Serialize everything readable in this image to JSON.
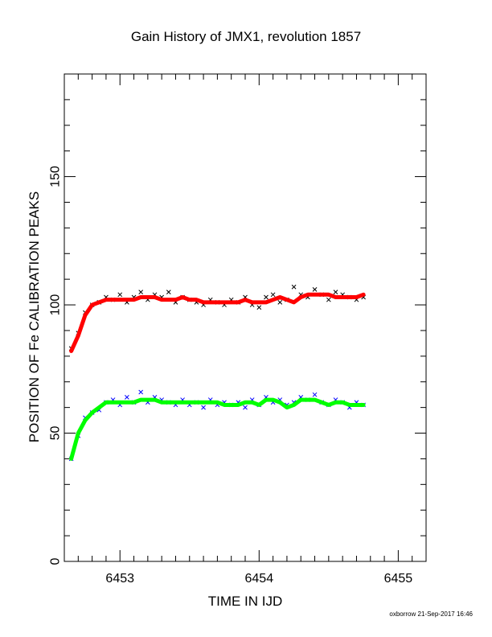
{
  "chart_data": {
    "type": "scatter",
    "title": "Gain History of JMX1, revolution 1857",
    "xlabel": "TIME IN IJD",
    "ylabel": "POSITION OF Fe CALIBRATION PEAKS",
    "xlim": [
      6452.6,
      6455.2
    ],
    "ylim": [
      0,
      190
    ],
    "xticks": [
      6453,
      6454,
      6455
    ],
    "yticks": [
      0,
      50,
      100,
      150
    ],
    "grid": false,
    "colors": {
      "upper_points": "#000000",
      "upper_fit": "#ff0000",
      "lower_points": "#0000ff",
      "lower_fit": "#00ff00"
    },
    "series": [
      {
        "role": "upper_points",
        "x": [
          6452.65,
          6452.7,
          6452.75,
          6452.8,
          6452.85,
          6452.9,
          6452.95,
          6453.0,
          6453.05,
          6453.1,
          6453.15,
          6453.2,
          6453.25,
          6453.3,
          6453.35,
          6453.4,
          6453.45,
          6453.5,
          6453.55,
          6453.6,
          6453.65,
          6453.7,
          6453.75,
          6453.8,
          6453.85,
          6453.9,
          6453.95,
          6454.0,
          6454.05,
          6454.1,
          6454.15,
          6454.2,
          6454.25,
          6454.3,
          6454.35,
          6454.4,
          6454.45,
          6454.5,
          6454.55,
          6454.6,
          6454.65,
          6454.7,
          6454.75
        ],
        "y": [
          83,
          89,
          97,
          100,
          101,
          103,
          102,
          104,
          101,
          103,
          105,
          102,
          104,
          103,
          105,
          101,
          103,
          102,
          101,
          100,
          102,
          101,
          100,
          102,
          101,
          103,
          100,
          99,
          103,
          104,
          101,
          102,
          107,
          104,
          103,
          106,
          104,
          102,
          105,
          104,
          103,
          102,
          103
        ]
      },
      {
        "role": "upper_fit",
        "x": [
          6452.65,
          6452.7,
          6452.75,
          6452.8,
          6452.85,
          6452.9,
          6452.95,
          6453.0,
          6453.05,
          6453.1,
          6453.15,
          6453.2,
          6453.25,
          6453.3,
          6453.35,
          6453.4,
          6453.45,
          6453.5,
          6453.55,
          6453.6,
          6453.65,
          6453.7,
          6453.75,
          6453.8,
          6453.85,
          6453.9,
          6453.95,
          6454.0,
          6454.05,
          6454.1,
          6454.15,
          6454.2,
          6454.25,
          6454.3,
          6454.35,
          6454.4,
          6454.45,
          6454.5,
          6454.55,
          6454.6,
          6454.65,
          6454.7,
          6454.75
        ],
        "y": [
          82,
          88,
          96,
          100,
          101,
          102,
          102,
          102,
          102,
          102,
          103,
          103,
          103,
          102,
          102,
          102,
          103,
          102,
          102,
          101,
          101,
          101,
          101,
          101,
          101,
          102,
          101,
          101,
          101,
          102,
          103,
          102,
          101,
          103,
          104,
          104,
          104,
          104,
          103,
          103,
          103,
          103,
          104
        ]
      },
      {
        "role": "lower_points",
        "x": [
          6452.65,
          6452.7,
          6452.75,
          6452.8,
          6452.85,
          6452.9,
          6452.95,
          6453.0,
          6453.05,
          6453.1,
          6453.15,
          6453.2,
          6453.25,
          6453.3,
          6453.35,
          6453.4,
          6453.45,
          6453.5,
          6453.55,
          6453.6,
          6453.65,
          6453.7,
          6453.75,
          6453.8,
          6453.85,
          6453.9,
          6453.95,
          6454.0,
          6454.05,
          6454.1,
          6454.15,
          6454.2,
          6454.25,
          6454.3,
          6454.35,
          6454.4,
          6454.45,
          6454.5,
          6454.55,
          6454.6,
          6454.65,
          6454.7,
          6454.75
        ],
        "y": [
          40,
          49,
          56,
          58,
          59,
          62,
          63,
          61,
          64,
          62,
          66,
          62,
          64,
          63,
          62,
          61,
          63,
          61,
          62,
          60,
          63,
          61,
          62,
          61,
          62,
          60,
          63,
          61,
          64,
          62,
          63,
          61,
          62,
          64,
          63,
          65,
          62,
          61,
          63,
          62,
          60,
          62,
          61
        ]
      },
      {
        "role": "lower_fit",
        "x": [
          6452.65,
          6452.7,
          6452.75,
          6452.8,
          6452.85,
          6452.9,
          6452.95,
          6453.0,
          6453.05,
          6453.1,
          6453.15,
          6453.2,
          6453.25,
          6453.3,
          6453.35,
          6453.4,
          6453.45,
          6453.5,
          6453.55,
          6453.6,
          6453.65,
          6453.7,
          6453.75,
          6453.8,
          6453.85,
          6453.9,
          6453.95,
          6454.0,
          6454.05,
          6454.1,
          6454.15,
          6454.2,
          6454.25,
          6454.3,
          6454.35,
          6454.4,
          6454.45,
          6454.5,
          6454.55,
          6454.6,
          6454.65,
          6454.7,
          6454.75
        ],
        "y": [
          40,
          50,
          55,
          58,
          60,
          62,
          62,
          62,
          62,
          62,
          63,
          63,
          63,
          62,
          62,
          62,
          62,
          62,
          62,
          62,
          62,
          62,
          61,
          61,
          61,
          62,
          62,
          61,
          63,
          63,
          62,
          60,
          61,
          63,
          63,
          63,
          62,
          61,
          62,
          62,
          61,
          61,
          61
        ]
      }
    ]
  },
  "footer": "oxborrow 21-Sep-2017 16:46"
}
